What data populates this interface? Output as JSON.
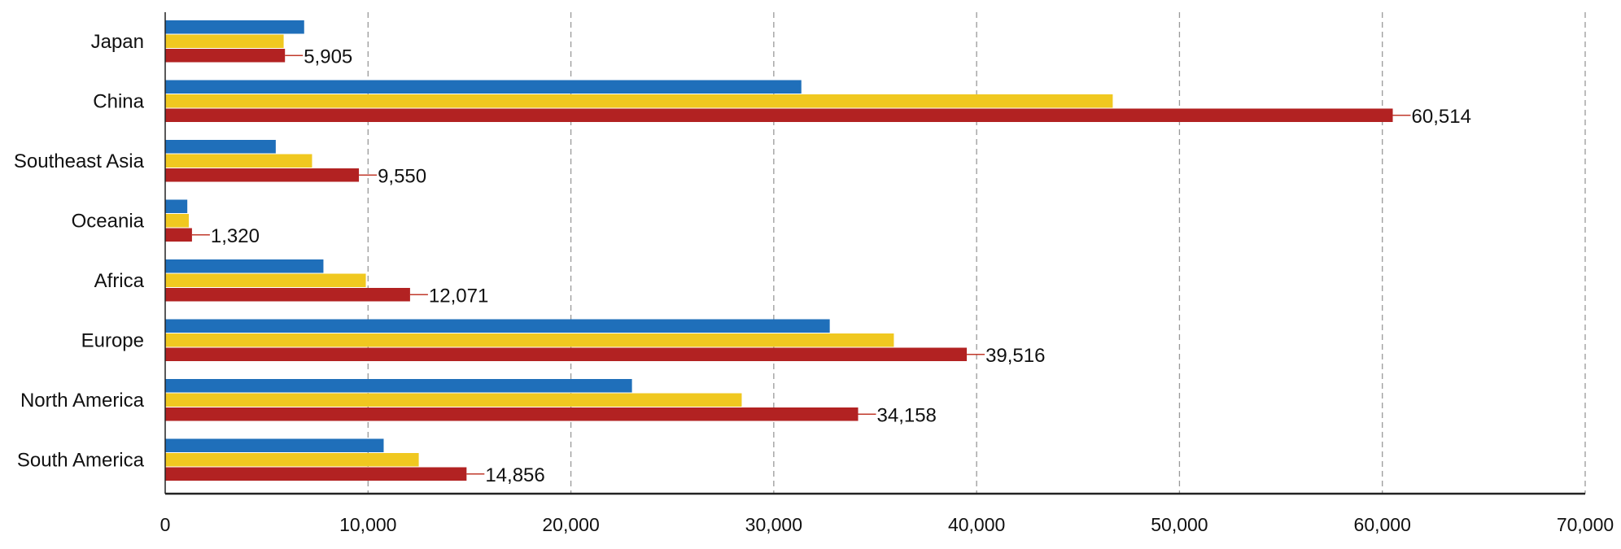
{
  "chart_data": {
    "type": "bar",
    "orientation": "horizontal",
    "title": "",
    "xlabel": "",
    "ylabel": "",
    "categories": [
      "Japan",
      "China",
      "Southeast Asia",
      "Oceania",
      "Africa",
      "Europe",
      "North America",
      "South America"
    ],
    "series": [
      {
        "color": "#1f6fba",
        "values": [
          6850,
          31360,
          5450,
          1090,
          7800,
          32760,
          23010,
          10770
        ]
      },
      {
        "color": "#f0c820",
        "values": [
          5840,
          46710,
          7240,
          1165,
          9890,
          35920,
          28420,
          12500
        ]
      },
      {
        "color": "#b22222",
        "values": [
          5905,
          60514,
          9550,
          1320,
          12071,
          39516,
          34158,
          14856
        ]
      }
    ],
    "data_labels": [
      "5,905",
      "60,514",
      "9,550",
      "1,320",
      "12,071",
      "39,516",
      "34,158",
      "14,856"
    ],
    "xlim": [
      0,
      70000
    ],
    "xticks": [
      "0",
      "10,000",
      "20,000",
      "30,000",
      "40,000",
      "50,000",
      "60,000",
      "70,000"
    ],
    "grid": "vertical dashed",
    "legend": "none"
  }
}
